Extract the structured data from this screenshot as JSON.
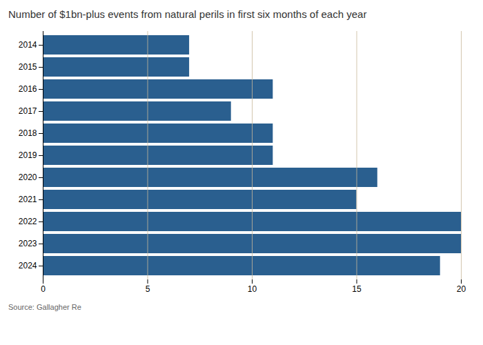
{
  "chart_data": {
    "type": "bar",
    "orientation": "horizontal",
    "title": "Number of $1bn-plus events from natural perils in first six months of each year",
    "source": "Source: Gallagher Re",
    "categories": [
      "2014",
      "2015",
      "2016",
      "2017",
      "2018",
      "2019",
      "2020",
      "2021",
      "2022",
      "2023",
      "2024"
    ],
    "values": [
      7,
      7,
      11,
      9,
      11,
      11,
      16,
      15,
      20,
      20,
      19
    ],
    "color": "#2a5f8f",
    "xlim": [
      0,
      20
    ],
    "xticks": [
      0,
      5,
      10,
      15,
      20
    ],
    "grid": true
  }
}
